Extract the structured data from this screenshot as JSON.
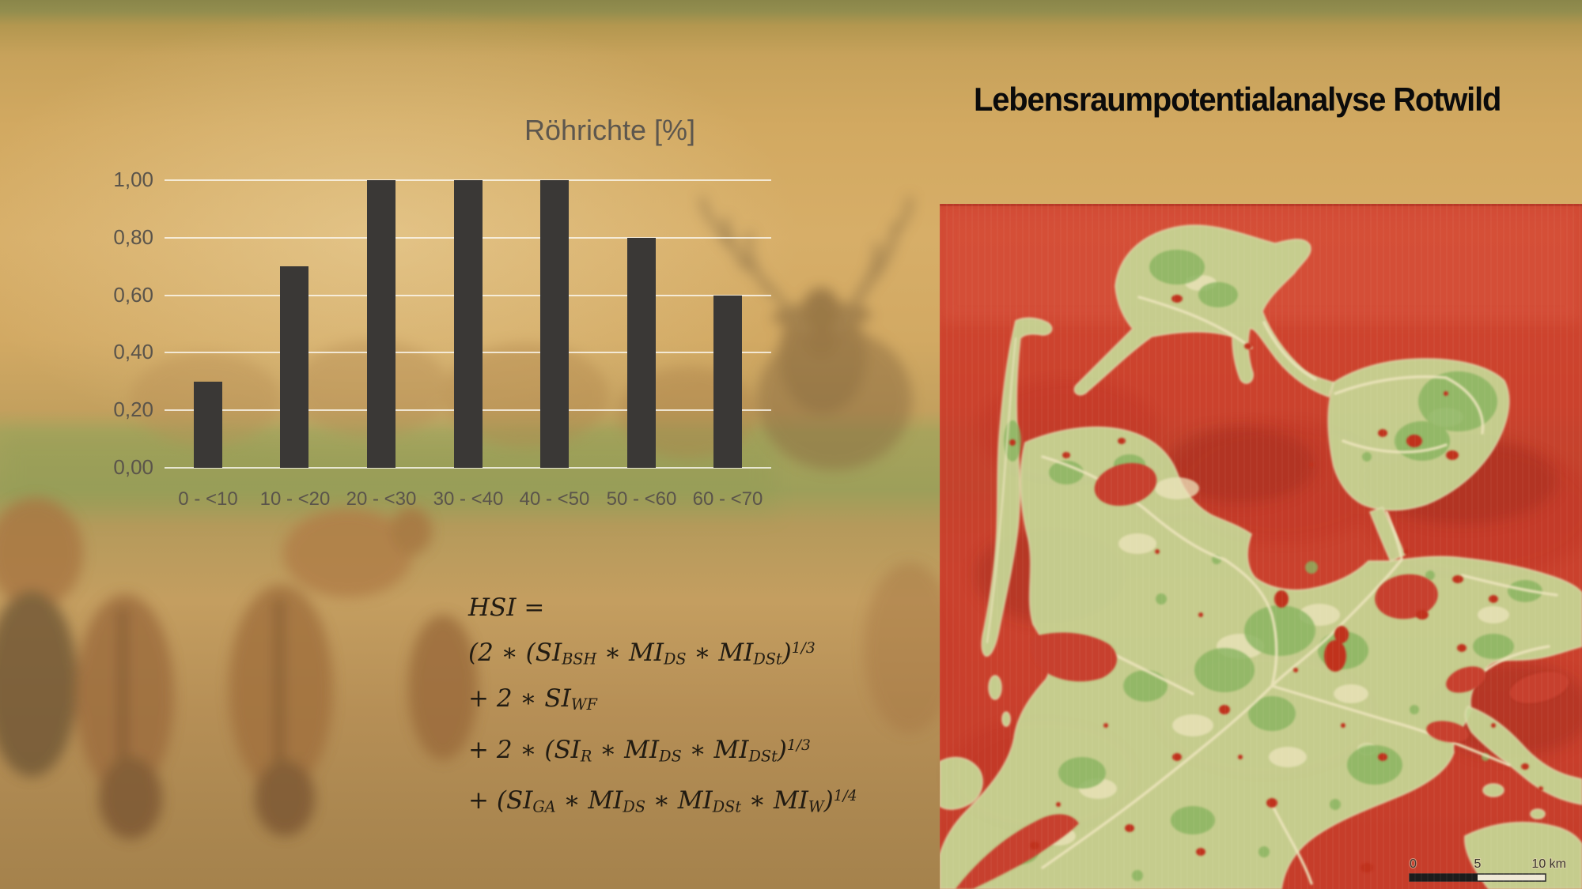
{
  "slide": {
    "title": "Lebensraumpotentialanalyse Rotwild"
  },
  "chart_data": {
    "type": "bar",
    "title": "Röhrichte [%]",
    "categories": [
      "0 - <10",
      "10 - <20",
      "20 - <30",
      "30 - <40",
      "40 - <50",
      "50 - <60",
      "60 - <70"
    ],
    "values": [
      0.3,
      0.7,
      1.0,
      1.0,
      1.0,
      0.8,
      0.6
    ],
    "xlabel": "",
    "ylabel": "",
    "ylim": [
      0,
      1
    ],
    "y_tick_step": 0.2,
    "y_tick_labels": [
      "1,00",
      "0,80",
      "0,60",
      "0,40",
      "0,20",
      "0,00"
    ],
    "grid": true,
    "legend": false,
    "bar_color": "#3a3836",
    "tick_label_color": "#5a544b",
    "title_color": "#5d574e",
    "gridline_color": "rgba(252,250,244,0.78)"
  },
  "formula": {
    "lines": [
      [
        {
          "t": "HSI ="
        }
      ],
      [
        {
          "t": "(2 ∗ ("
        },
        {
          "t": "SI"
        },
        {
          "t": "BSH",
          "s": "sub"
        },
        {
          "t": " ∗ "
        },
        {
          "t": "MI"
        },
        {
          "t": "DS",
          "s": "sub"
        },
        {
          "t": " ∗ "
        },
        {
          "t": "MI"
        },
        {
          "t": "DSt",
          "s": "sub"
        },
        {
          "t": ")"
        },
        {
          "t": "1/3",
          "s": "sup"
        }
      ],
      [
        {
          "t": "+ 2 ∗ "
        },
        {
          "t": "SI"
        },
        {
          "t": "WF",
          "s": "sub"
        }
      ],
      [
        {
          "t": "+ 2 ∗ ("
        },
        {
          "t": "SI"
        },
        {
          "t": "R",
          "s": "sub"
        },
        {
          "t": " ∗ "
        },
        {
          "t": "MI"
        },
        {
          "t": "DS",
          "s": "sub"
        },
        {
          "t": " ∗ "
        },
        {
          "t": "MI"
        },
        {
          "t": "DSt",
          "s": "sub"
        },
        {
          "t": ")"
        },
        {
          "t": "1/3",
          "s": "sup"
        }
      ],
      [
        {
          "t": "+ ("
        },
        {
          "t": "SI"
        },
        {
          "t": "GA",
          "s": "sub"
        },
        {
          "t": " ∗ "
        },
        {
          "t": "MI"
        },
        {
          "t": "DS",
          "s": "sub"
        },
        {
          "t": " ∗ "
        },
        {
          "t": "MI"
        },
        {
          "t": "DSt",
          "s": "sub"
        },
        {
          "t": " ∗ "
        },
        {
          "t": "MI"
        },
        {
          "t": "W",
          "s": "sub"
        },
        {
          "t": ")"
        },
        {
          "t": "1/4",
          "s": "sup"
        }
      ]
    ]
  },
  "map": {
    "scale_bar": {
      "zero": "0",
      "five": "5",
      "ten": "10 km"
    },
    "colors": {
      "unsuitable_red": "#cc3024",
      "bay_red": "#c7402f",
      "suitable_green": "#c5d694",
      "forest_green": "#87b35e",
      "open_cream": "#ece4bc",
      "road_cream": "#ece4bc",
      "settlement_red": "#c0301f"
    }
  }
}
